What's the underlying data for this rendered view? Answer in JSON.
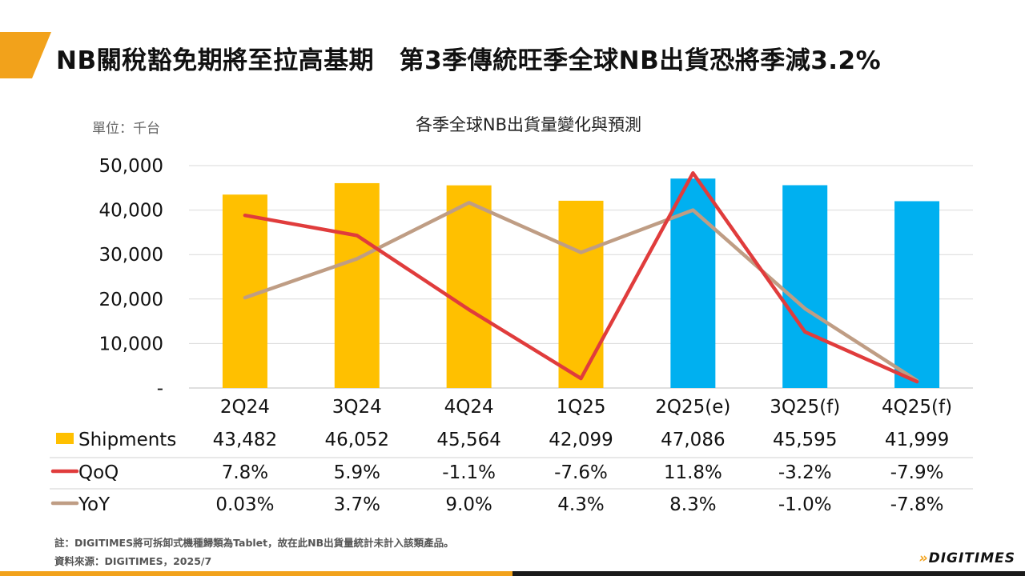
{
  "header": {
    "title": "NB關稅豁免期將至拉高基期　第3季傳統旺季全球NB出貨恐將季減3.2%"
  },
  "colors": {
    "accent": "#f2a21b",
    "actual_bar": "#ffc000",
    "forecast_bar": "#00b0f0",
    "qoq_line": "#e03c3c",
    "yoy_line": "#bf9d84"
  },
  "chart_data": {
    "type": "bar",
    "title": "各季全球NB出貨量變化與預測",
    "unit_label": "單位：千台",
    "categories": [
      "2Q24",
      "3Q24",
      "4Q24",
      "1Q25",
      "2Q25(e)",
      "3Q25(f)",
      "4Q25(f)"
    ],
    "forecast_from_index": 4,
    "ylim": [
      0,
      50000
    ],
    "yticks": [
      "-",
      "10,000",
      "20,000",
      "30,000",
      "40,000",
      "50,000"
    ],
    "grid": true,
    "series": [
      {
        "name": "Shipments",
        "kind": "bar",
        "values": [
          43482,
          46052,
          45564,
          42099,
          47086,
          45595,
          41999
        ],
        "labels": [
          "43,482",
          "46,052",
          "45,564",
          "42,099",
          "47,086",
          "45,595",
          "41,999"
        ]
      },
      {
        "name": "QoQ",
        "kind": "line",
        "values": [
          7.8,
          5.9,
          -1.1,
          -7.6,
          11.8,
          -3.2,
          -7.9
        ],
        "labels": [
          "7.8%",
          "5.9%",
          "-1.1%",
          "-7.6%",
          "11.8%",
          "-3.2%",
          "-7.9%"
        ]
      },
      {
        "name": "YoY",
        "kind": "line",
        "values": [
          0.03,
          3.7,
          9.0,
          4.3,
          8.3,
          -1.0,
          -7.8
        ],
        "labels": [
          "0.03%",
          "3.7%",
          "9.0%",
          "4.3%",
          "8.3%",
          "-1.0%",
          "-7.8%"
        ]
      }
    ]
  },
  "footnotes": {
    "note": "註：DIGITIMES將可拆卸式機種歸類為Tablet，故在此NB出貨量統計未計入該類產品。",
    "source": "資料來源：DIGITIMES，2025/7"
  },
  "brand": {
    "logo_text": "DIGITIMES"
  }
}
